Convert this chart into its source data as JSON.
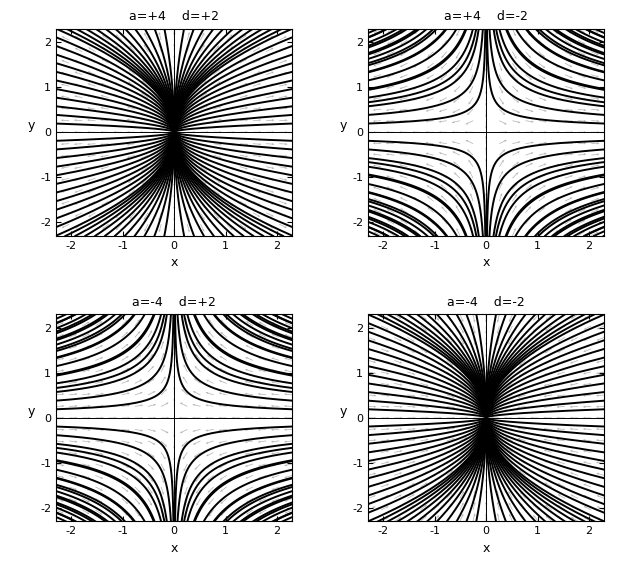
{
  "panels": [
    {
      "a": 4,
      "d": 2,
      "title": "a=+4    d=+2",
      "row": 0,
      "col": 0
    },
    {
      "a": 4,
      "d": -2,
      "title": "a=+4    d=-2",
      "row": 0,
      "col": 1
    },
    {
      "a": -4,
      "d": 2,
      "title": "a=-4    d=+2",
      "row": 1,
      "col": 0
    },
    {
      "a": -4,
      "d": -2,
      "title": "a=-4    d=-2",
      "row": 1,
      "col": 1
    }
  ],
  "xlim": [
    -2.5,
    2.5
  ],
  "ylim": [
    -2.5,
    2.5
  ],
  "xplot": [
    -2.3,
    2.3
  ],
  "yplot": [
    -2.3,
    2.3
  ],
  "xticks": [
    -2,
    -1,
    0,
    1,
    2
  ],
  "yticks": [
    -2,
    -1,
    0,
    1,
    2
  ],
  "xlabel": "x",
  "ylabel": "y",
  "traj_color": "black",
  "quiver_color": "gray",
  "traj_lw": 1.4,
  "figsize": [
    6.23,
    5.73
  ],
  "dpi": 100
}
